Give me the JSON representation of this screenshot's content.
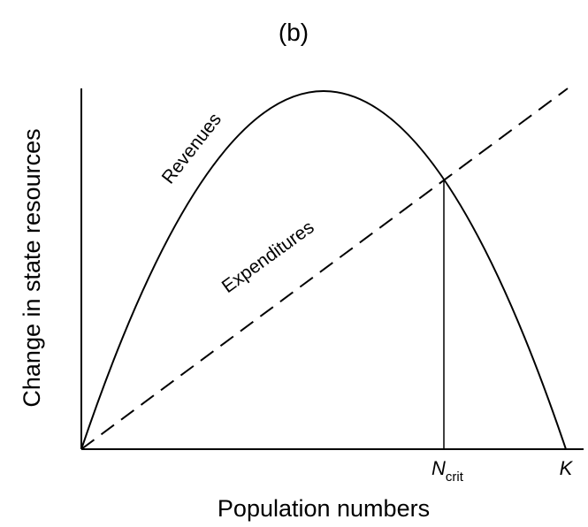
{
  "title": "(b)",
  "y_axis_label": "Change in state resources",
  "x_axis_label": "Population numbers",
  "curves": {
    "revenues": "Revenues",
    "expenditures": "Expenditures"
  },
  "x_marks": {
    "n_crit": {
      "symbol": "N",
      "subscript": "crit"
    },
    "k": "K"
  }
}
